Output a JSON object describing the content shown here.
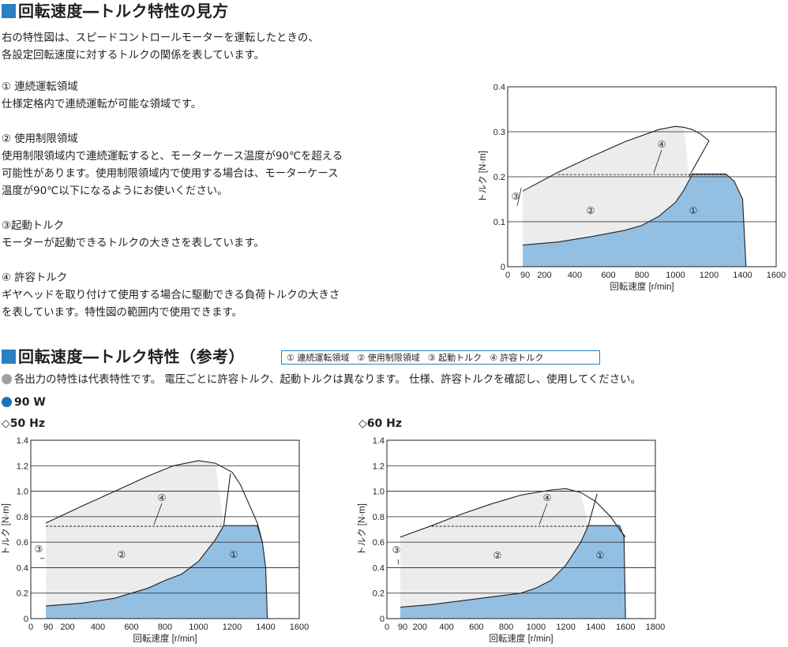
{
  "section1": {
    "title": "回転速度―トルク特性の見方",
    "intro": [
      "右の特性図は、スピードコントロールモーターを運転したときの、",
      "各設定回転速度に対するトルクの関係を表しています。"
    ],
    "items": [
      {
        "heading": "① 連続運転領域",
        "lines": [
          "仕様定格内で連続運転が可能な領域です。"
        ]
      },
      {
        "heading": "② 使用制限領域",
        "lines": [
          "使用制限領域内で連続運転すると、モーターケース温度が90℃を超える",
          "可能性があります。使用制限領域内で使用する場合は、モーターケース",
          "温度が90℃以下になるようにお使いください。"
        ]
      },
      {
        "heading": "③起動トルク",
        "lines": [
          "モーターが起動できるトルクの大きさを表しています。"
        ]
      },
      {
        "heading": "④ 許容トルク",
        "lines": [
          "ギヤヘッドを取り付けて使用する場合に駆動できる負荷トルクの大きさ",
          "を表しています。特性図の範囲内で使用できます。"
        ]
      }
    ]
  },
  "section2": {
    "title": "回転速度―トルク特性（参考）",
    "legend": [
      "① 連続運転領域",
      "② 使用制限領域",
      "③ 起動トルク",
      "④ 許容トルク"
    ],
    "note": "各出力の特性は代表特性です。 電圧ごとに許容トルク、起動トルクは異なります。 仕様、許容トルクを確認し、使用してください。",
    "power": "90 W"
  },
  "colors": {
    "accent": "#2a7fc1",
    "continuous": "#93bfe3",
    "limited": "#ececec",
    "note_dot": "#a0a0a0",
    "power_dot": "#1a72b9"
  },
  "chart_data": [
    {
      "id": "example",
      "type": "area",
      "xlabel": "回転速度 [r/min]",
      "ylabel": "トルク [N·m]",
      "xlim": [
        0,
        1600
      ],
      "ylim": [
        0,
        0.4
      ],
      "xticks": [
        "0",
        "90",
        "200",
        "400",
        "600",
        "800",
        "1000",
        "1200",
        "1400",
        "1600"
      ],
      "yticks": [
        "0",
        "0.1",
        "0.2",
        "0.3",
        "0.4"
      ],
      "grid": "horizontal",
      "region_labels": [
        "①",
        "②",
        "③",
        "④"
      ],
      "continuous_boundary": [
        [
          90,
          0.048
        ],
        [
          300,
          0.055
        ],
        [
          500,
          0.067
        ],
        [
          700,
          0.081
        ],
        [
          800,
          0.092
        ],
        [
          900,
          0.112
        ],
        [
          1000,
          0.143
        ],
        [
          1050,
          0.17
        ],
        [
          1100,
          0.206
        ],
        [
          1300,
          0.206
        ],
        [
          1350,
          0.19
        ],
        [
          1400,
          0.15
        ],
        [
          1420,
          0.0
        ]
      ],
      "permissible_torque": [
        [
          300,
          0.205
        ],
        [
          1300,
          0.205
        ]
      ],
      "max_torque_curve": [
        [
          90,
          0.168
        ],
        [
          300,
          0.21
        ],
        [
          500,
          0.245
        ],
        [
          700,
          0.278
        ],
        [
          900,
          0.305
        ],
        [
          1000,
          0.312
        ],
        [
          1050,
          0.31
        ],
        [
          1100,
          0.305
        ],
        [
          1150,
          0.295
        ],
        [
          1200,
          0.28
        ]
      ],
      "intersect_line": [
        [
          1080,
          0.2
        ],
        [
          1200,
          0.28
        ]
      ],
      "starting_torque": 0.168
    },
    {
      "id": "50hz",
      "type": "area",
      "label": "◇50 Hz",
      "xlabel": "回転速度 [r/min]",
      "ylabel": "トルク [N·m]",
      "xlim": [
        0,
        1600
      ],
      "ylim": [
        0,
        1.4
      ],
      "xticks": [
        "0",
        "90",
        "200",
        "400",
        "600",
        "800",
        "1000",
        "1200",
        "1400",
        "1600"
      ],
      "yticks": [
        "0",
        "0.2",
        "0.4",
        "0.6",
        "0.8",
        "1.0",
        "1.2",
        "1.4"
      ],
      "grid": "horizontal",
      "region_labels": [
        "①",
        "②",
        "③",
        "④"
      ],
      "continuous_boundary": [
        [
          90,
          0.1
        ],
        [
          300,
          0.12
        ],
        [
          500,
          0.16
        ],
        [
          700,
          0.24
        ],
        [
          800,
          0.3
        ],
        [
          900,
          0.35
        ],
        [
          1000,
          0.45
        ],
        [
          1100,
          0.62
        ],
        [
          1150,
          0.73
        ],
        [
          1350,
          0.73
        ],
        [
          1380,
          0.6
        ],
        [
          1400,
          0.4
        ],
        [
          1410,
          0.0
        ]
      ],
      "permissible_torque": [
        [
          90,
          0.725
        ],
        [
          1150,
          0.725
        ]
      ],
      "max_torque_curve": [
        [
          90,
          0.75
        ],
        [
          300,
          0.88
        ],
        [
          500,
          1.0
        ],
        [
          700,
          1.12
        ],
        [
          850,
          1.2
        ],
        [
          1000,
          1.24
        ],
        [
          1100,
          1.22
        ],
        [
          1200,
          1.15
        ],
        [
          1250,
          1.05
        ],
        [
          1300,
          0.9
        ],
        [
          1350,
          0.75
        ],
        [
          1380,
          0.6
        ]
      ],
      "intersect_line": [
        [
          1150,
          0.73
        ],
        [
          1190,
          1.14
        ]
      ],
      "starting_torque": 0.45
    },
    {
      "id": "60hz",
      "type": "area",
      "label": "◇60 Hz",
      "xlabel": "回転速度 [r/min]",
      "ylabel": "トルク [N·m]",
      "xlim": [
        0,
        1800
      ],
      "ylim": [
        0,
        1.4
      ],
      "xticks": [
        "0",
        "90",
        "200",
        "400",
        "600",
        "800",
        "1000",
        "1200",
        "1400",
        "1600",
        "1800"
      ],
      "yticks": [
        "0",
        "0.2",
        "0.4",
        "0.6",
        "0.8",
        "1.0",
        "1.2",
        "1.4"
      ],
      "grid": "horizontal",
      "region_labels": [
        "①",
        "②",
        "③",
        "④"
      ],
      "continuous_boundary": [
        [
          90,
          0.09
        ],
        [
          300,
          0.11
        ],
        [
          500,
          0.14
        ],
        [
          700,
          0.17
        ],
        [
          900,
          0.2
        ],
        [
          1000,
          0.24
        ],
        [
          1100,
          0.3
        ],
        [
          1200,
          0.42
        ],
        [
          1300,
          0.6
        ],
        [
          1350,
          0.73
        ],
        [
          1560,
          0.73
        ],
        [
          1590,
          0.64
        ],
        [
          1600,
          0.0
        ]
      ],
      "permissible_torque": [
        [
          300,
          0.725
        ],
        [
          1350,
          0.725
        ]
      ],
      "max_torque_curve": [
        [
          90,
          0.64
        ],
        [
          300,
          0.73
        ],
        [
          500,
          0.82
        ],
        [
          700,
          0.9
        ],
        [
          900,
          0.97
        ],
        [
          1100,
          1.01
        ],
        [
          1200,
          1.02
        ],
        [
          1300,
          0.99
        ],
        [
          1400,
          0.92
        ],
        [
          1500,
          0.8
        ],
        [
          1560,
          0.7
        ],
        [
          1600,
          0.64
        ]
      ],
      "intersect_line": [
        [
          1350,
          0.73
        ],
        [
          1410,
          0.98
        ]
      ],
      "starting_torque": 0.4
    }
  ]
}
